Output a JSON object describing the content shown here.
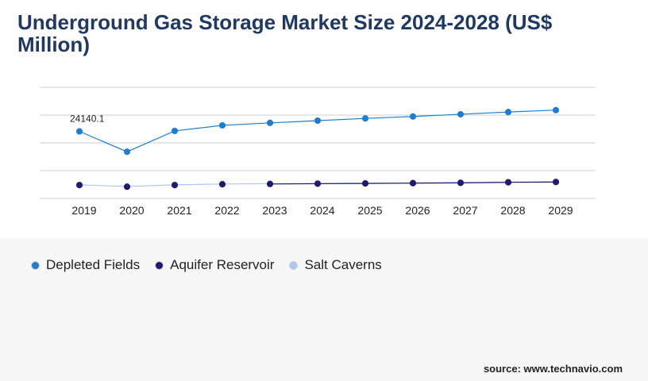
{
  "title": "Underground Gas Storage Market Size 2024-2028 (US$ Million)",
  "source": "source: www.technavio.com",
  "chart_data": {
    "type": "line",
    "title": "Underground Gas Storage Market Size 2024-2028 (US$ Million)",
    "categories": [
      "2019",
      "2020",
      "2021",
      "2022",
      "2023",
      "2024",
      "2025",
      "2026",
      "2027",
      "2028",
      "2029"
    ],
    "ylim": [
      0,
      40000
    ],
    "grid": true,
    "legend_position": "bottom-left",
    "series": [
      {
        "name": "Depleted Fields",
        "color": "#1a7fd4",
        "values": [
          24140.1,
          16800,
          24300,
          26300,
          27200,
          28000,
          28800,
          29500,
          30300,
          31100,
          31800
        ],
        "show_line_from_index": 0
      },
      {
        "name": "Aquifer Reservoir",
        "color": "#1e1b6e",
        "values": [
          4800,
          4200,
          4800,
          5100,
          5200,
          5300,
          5400,
          5500,
          5600,
          5800,
          5900
        ],
        "show_line_from_index": 4
      },
      {
        "name": "Salt Caverns",
        "color": "#aac8f2",
        "values": [
          4900,
          4300,
          4900,
          5200,
          5300,
          5400,
          5500,
          5600,
          5700,
          5900,
          6000
        ],
        "show_line_from_index": 0
      }
    ],
    "annotations": [
      {
        "series": "Depleted Fields",
        "category": "2019",
        "text": "24140.1"
      }
    ]
  }
}
